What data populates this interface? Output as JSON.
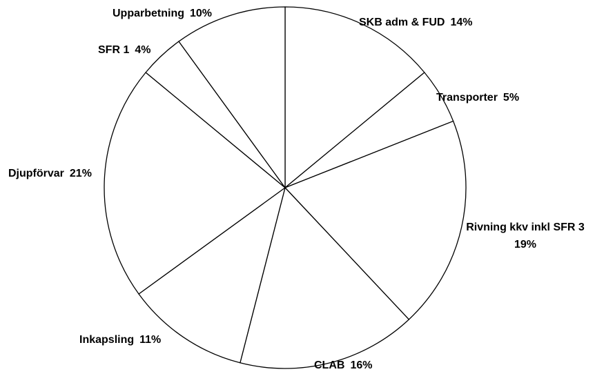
{
  "chart_data": {
    "type": "pie",
    "categories": [
      "SKB adm & FUD",
      "Transporter",
      "Rivning kkv inkl SFR 3",
      "CLAB",
      "Inkapsling",
      "Djupförvar",
      "SFR 1",
      "Upparbetning"
    ],
    "values": [
      14,
      5,
      19,
      16,
      11,
      21,
      4,
      10
    ],
    "value_labels": [
      "14%",
      "5%",
      "19%",
      "16%",
      "11%",
      "21%",
      "4%",
      "10%"
    ],
    "color": "#ffffff"
  }
}
